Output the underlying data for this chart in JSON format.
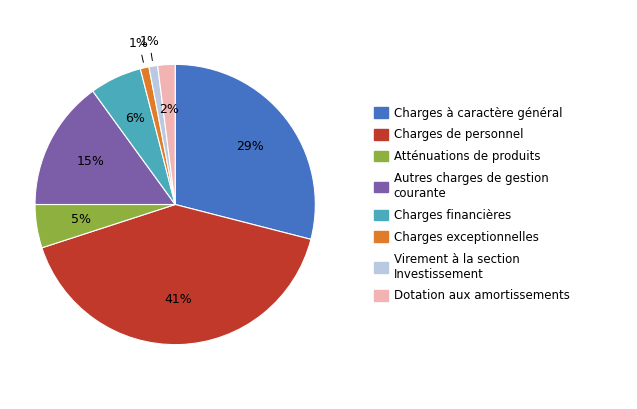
{
  "labels": [
    "Charges à caractère général",
    "Charges de personnel",
    "Atténuations de produits",
    "Autres charges de gestion\ncourante",
    "Charges financières",
    "Charges exceptionnelles",
    "Virement à la section\nInvestissement",
    "Dotation aux amortissements"
  ],
  "values": [
    29,
    41,
    5,
    15,
    6,
    1,
    1,
    2
  ],
  "colors": [
    "#4472C4",
    "#C0392B",
    "#8DB03E",
    "#7B5EA7",
    "#4AABBA",
    "#E07B2A",
    "#B8C9E1",
    "#F2B3B3"
  ],
  "pct_labels": [
    "29%",
    "41%",
    "5%",
    "15%",
    "6%",
    "1%",
    "1%",
    "2%"
  ],
  "startangle": 90,
  "legend_fontsize": 8.5,
  "pct_fontsize": 9,
  "figsize": [
    6.37,
    4.09
  ],
  "dpi": 100
}
